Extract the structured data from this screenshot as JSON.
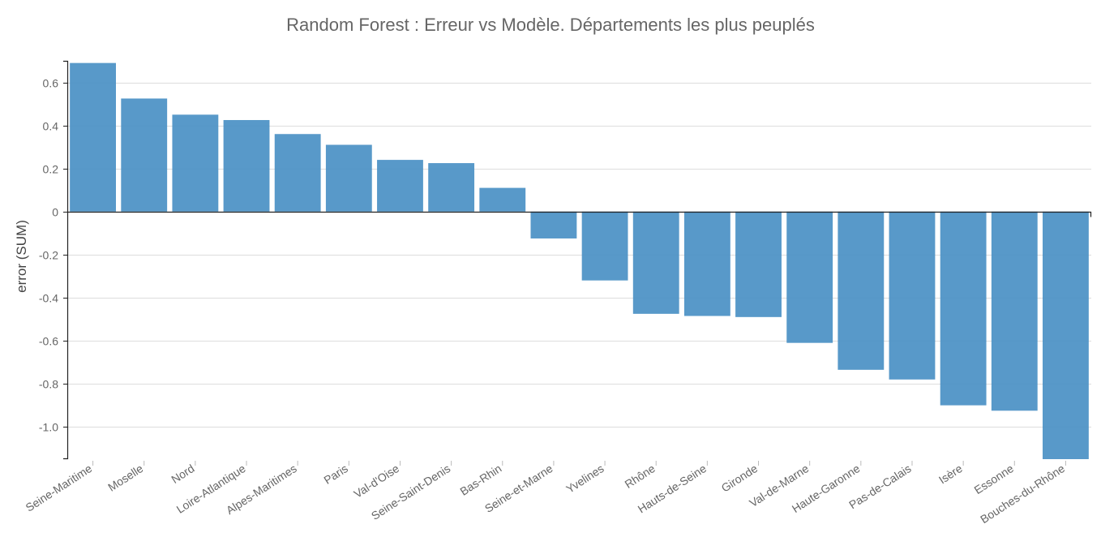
{
  "chart_data": {
    "type": "bar",
    "title": "Random Forest : Erreur vs Modèle. Départements les plus peuplés",
    "xlabel": "",
    "ylabel": "error (SUM)",
    "ylim": [
      -1.15,
      0.7
    ],
    "yticks": [
      0.6,
      0.4,
      0.2,
      0,
      -0.2,
      -0.4,
      -0.6,
      -0.8,
      -1.0
    ],
    "ytick_labels": [
      "0.6",
      "0.4",
      "0.2",
      "0",
      "-0.2",
      "-0.4",
      "-0.6",
      "-0.8",
      "-1.0"
    ],
    "grid": true,
    "legend": "none",
    "bar_color": "#4a90c4",
    "categories": [
      "Seine-Maritime",
      "Moselle",
      "Nord",
      "Loire-Atlantique",
      "Alpes-Maritimes",
      "Paris",
      "Val-d'Oise",
      "Seine-Saint-Denis",
      "Bas-Rhin",
      "Seine-et-Marne",
      "Yvelines",
      "Rhône",
      "Hauts-de-Seine",
      "Gironde",
      "Val-de-Marne",
      "Haute-Garonne",
      "Pas-de-Calais",
      "Isère",
      "Essonne",
      "Bouches-du-Rhône"
    ],
    "values": [
      0.69,
      0.525,
      0.45,
      0.425,
      0.36,
      0.31,
      0.24,
      0.225,
      0.11,
      -0.125,
      -0.32,
      -0.475,
      -0.485,
      -0.49,
      -0.61,
      -0.735,
      -0.78,
      -0.9,
      -0.925,
      -1.15
    ]
  }
}
